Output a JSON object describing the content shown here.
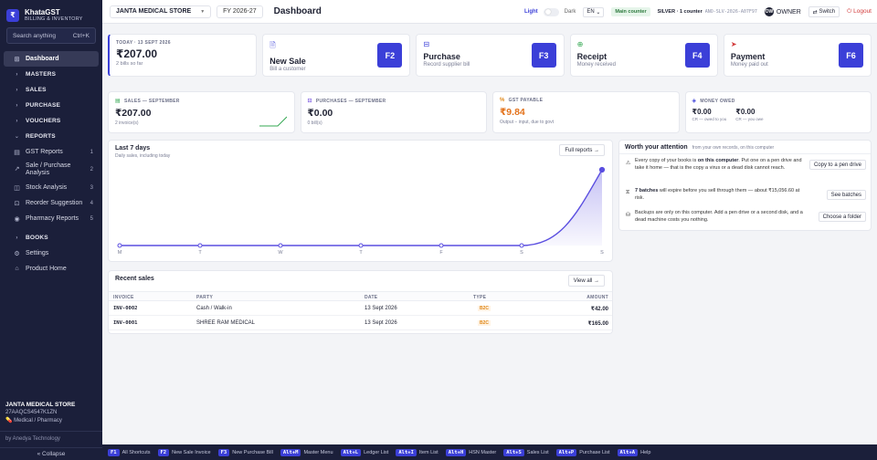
{
  "app": {
    "name": "KhataGST",
    "tagline": "BILLING & INVENTORY",
    "logo_glyph": "₹"
  },
  "sidebar": {
    "search": {
      "placeholder": "Search anything",
      "shortcut": "Ctrl+K"
    },
    "items": [
      {
        "label": "Dashboard",
        "icon": "grid-icon",
        "active": true
      },
      {
        "label": "MASTERS",
        "group": true
      },
      {
        "label": "SALES",
        "group": true
      },
      {
        "label": "PURCHASE",
        "group": true
      },
      {
        "label": "VOUCHERS",
        "group": true
      },
      {
        "label": "REPORTS",
        "group": true,
        "expanded": true
      },
      {
        "label": "GST Reports",
        "icon": "receipt-icon",
        "count": "1"
      },
      {
        "label": "Sale / Purchase Analysis",
        "icon": "chart-icon",
        "count": "2"
      },
      {
        "label": "Stock Analysis",
        "icon": "box-icon",
        "count": "3"
      },
      {
        "label": "Reorder Suggestion",
        "icon": "cart-icon",
        "count": "4"
      },
      {
        "label": "Pharmacy Reports",
        "icon": "pill-icon",
        "count": "5"
      },
      {
        "label": "BOOKS",
        "group": true
      },
      {
        "label": "Settings",
        "icon": "gear-icon"
      },
      {
        "label": "Product Home",
        "icon": "home-icon"
      }
    ],
    "footer": {
      "company": "JANTA MEDICAL STORE",
      "gstin": "27AAQCS4547K1ZN",
      "business_type": "Medical / Pharmacy",
      "by": "by Anedya Technology",
      "collapse": "« Collapse"
    }
  },
  "topbar": {
    "company": "JANTA MEDICAL STORE",
    "fy": "FY 2026-27",
    "title": "Dashboard",
    "theme_light": "Light",
    "theme_dark": "Dark",
    "lang": "EN",
    "counter": "Main counter",
    "license": "SILVER · 1 counter",
    "license_key": "ANO-SLV-2026-A07F97",
    "owner_initials": "OW",
    "owner": "OWNER",
    "switch": "Switch",
    "logout": "Logout"
  },
  "quick": {
    "today": {
      "label": "TODAY · 13 SEPT 2026",
      "value": "₹207.00",
      "sub": "2 bills so far"
    },
    "actions": [
      {
        "title": "New Sale",
        "sub": "Bill a customer",
        "key": "F2",
        "icon": "document-icon"
      },
      {
        "title": "Purchase",
        "sub": "Record supplier bill",
        "key": "F3",
        "icon": "inbox-icon"
      },
      {
        "title": "Receipt",
        "sub": "Money received",
        "key": "F4",
        "icon": "receipt-icon"
      },
      {
        "title": "Payment",
        "sub": "Money paid out",
        "key": "F6",
        "icon": "send-icon"
      }
    ]
  },
  "stats": {
    "sales": {
      "label": "SALES — SEPTEMBER",
      "value": "₹207.00",
      "sub": "2 invoice(s)"
    },
    "purchases": {
      "label": "PURCHASES — SEPTEMBER",
      "value": "₹0.00",
      "sub": "0 bill(s)"
    },
    "gst": {
      "label": "GST PAYABLE",
      "value": "₹9.84",
      "sub": "Output − input, due to govt"
    },
    "owed": {
      "label": "MONEY OWED",
      "to_you_value": "₹0.00",
      "to_you_label": "CR — owed to you",
      "you_owe_value": "₹0.00",
      "you_owe_label": "CR — you owe"
    }
  },
  "chart": {
    "title": "Last 7 days",
    "subtitle": "Daily sales, including today",
    "button": "Full reports →"
  },
  "chart_data": {
    "type": "area",
    "categories": [
      "M",
      "T",
      "W",
      "T",
      "F",
      "S",
      "S"
    ],
    "values": [
      0,
      0,
      0,
      0,
      0,
      0,
      207
    ],
    "ylim": [
      0,
      207
    ],
    "grid": false,
    "legend": "none",
    "color": "#5a4ee0"
  },
  "attention": {
    "title": "Worth your attention",
    "subtitle": "from your own records, on this computer",
    "items": [
      {
        "icon": "warning-icon",
        "pre": "Every copy of your books is ",
        "bold": "on this computer",
        "post": ". Put one on a pen drive and take it home — that is the copy a virus or a dead disk cannot reach.",
        "button": "Copy to a pen drive"
      },
      {
        "icon": "clock-icon",
        "pre": "",
        "bold": "7 batches",
        "post": " will expire before you sell through them — about ₹15,056.60 at risk.",
        "button": "See batches"
      },
      {
        "icon": "disk-icon",
        "pre": "Backups are only on this computer. Add a pen drive or a second disk, and a dead machine costs you nothing.",
        "bold": "",
        "post": "",
        "button": "Choose a folder"
      }
    ]
  },
  "recent_sales": {
    "title": "Recent sales",
    "button": "View all →",
    "columns": [
      "INVOICE",
      "PARTY",
      "DATE",
      "TYPE",
      "AMOUNT"
    ],
    "rows": [
      {
        "invoice": "INV-0002",
        "party": "Cash / Walk-in",
        "date": "13 Sept 2026",
        "type": "B2C",
        "amount": "₹42.00"
      },
      {
        "invoice": "INV-0001",
        "party": "SHREE RAM MEDICAL",
        "date": "13 Sept 2026",
        "type": "B2C",
        "amount": "₹165.00"
      }
    ]
  },
  "shortcuts": [
    {
      "key": "F1",
      "label": "All Shortcuts"
    },
    {
      "key": "F2",
      "label": "New Sale Invoice"
    },
    {
      "key": "F3",
      "label": "New Purchase Bill"
    },
    {
      "key": "Alt+M",
      "label": "Master Menu"
    },
    {
      "key": "Alt+L",
      "label": "Ledger List"
    },
    {
      "key": "Alt+I",
      "label": "Item List"
    },
    {
      "key": "Alt+H",
      "label": "HSN Master"
    },
    {
      "key": "Alt+S",
      "label": "Sales List"
    },
    {
      "key": "Alt+P",
      "label": "Purchase List"
    },
    {
      "key": "Alt+A",
      "label": "Help"
    }
  ],
  "colors": {
    "accent": "#3b3fd8",
    "sidebar": "#1b1f3a",
    "gst": "#e3721b",
    "spark": "#35a853"
  }
}
